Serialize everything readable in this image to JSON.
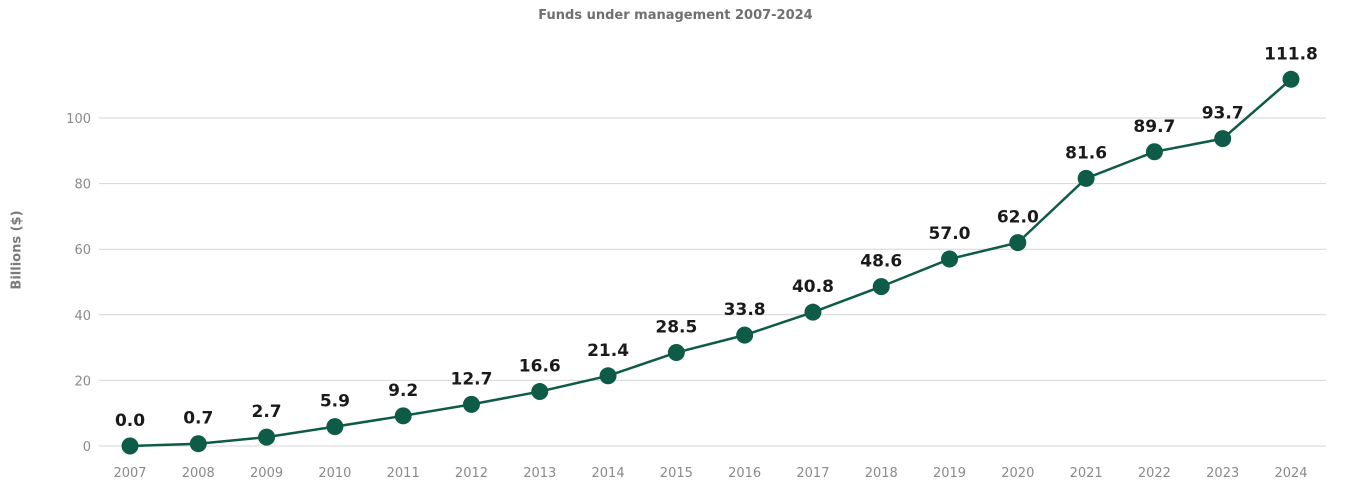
{
  "chart_data": {
    "type": "line",
    "title": "Funds under management 2007-2024",
    "xlabel": "",
    "ylabel": "Billions ($)",
    "x": [
      "2007",
      "2008",
      "2009",
      "2010",
      "2011",
      "2012",
      "2013",
      "2014",
      "2015",
      "2016",
      "2017",
      "2018",
      "2019",
      "2020",
      "2021",
      "2022",
      "2023",
      "2024"
    ],
    "series": [
      {
        "values": [
          0.0,
          0.7,
          2.7,
          5.9,
          9.2,
          12.7,
          16.6,
          21.4,
          28.5,
          33.8,
          40.8,
          48.6,
          57.0,
          62.0,
          81.6,
          89.7,
          93.7,
          111.8
        ],
        "labels": [
          "0.0",
          "0.7",
          "2.7",
          "5.9",
          "9.2",
          "12.7",
          "16.6",
          "21.4",
          "28.5",
          "33.8",
          "40.8",
          "48.6",
          "57.0",
          "62.0",
          "81.6",
          "89.7",
          "93.7",
          "111.8"
        ],
        "color": "#0e5c48"
      }
    ],
    "yticks": [
      "0",
      "20",
      "40",
      "60",
      "80",
      "100"
    ],
    "ylim": [
      0,
      120
    ],
    "grid": true,
    "legend": "none"
  }
}
